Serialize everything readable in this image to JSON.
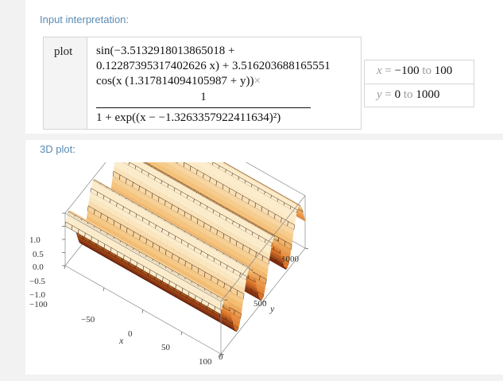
{
  "input_pod": {
    "title": "Input interpretation:",
    "plot_label": "plot",
    "formula": {
      "line1": "sin(−3.5132918013865018 +",
      "line2": "0.12287395317402626 x) + 3.516203688165551",
      "line3": "cos(x (1.317814094105987 + y))",
      "times": "×",
      "numerator": "1",
      "denominator": "1 + exp((x − −1.3263357922411634)²)"
    },
    "ranges": [
      {
        "var": "x",
        "op": "=",
        "from": "−100",
        "to_word": "to",
        "to": "100"
      },
      {
        "var": "y",
        "op": "=",
        "from": "0",
        "to_word": "to",
        "to": "1000"
      }
    ]
  },
  "plot_pod": {
    "title": "3D plot:",
    "z_ticks": [
      "1.0",
      "0.5",
      "0.0",
      "−0.5",
      "−1.0"
    ],
    "x_ticks": [
      "−100",
      "−50",
      "0",
      "50",
      "100"
    ],
    "y_ticks": [
      "0",
      "500",
      "1000"
    ],
    "x_axis_name": "x",
    "y_axis_name": "y"
  },
  "chart_data": {
    "type": "surface",
    "x_range": [
      -100,
      100
    ],
    "y_range": [
      0,
      1000
    ],
    "z_range": [
      -1.0,
      1.0
    ],
    "z_ticks": [
      1.0,
      0.5,
      0.0,
      -0.5,
      -1.0
    ],
    "x_ticks": [
      -100,
      -50,
      0,
      50,
      100
    ],
    "y_ticks": [
      0,
      500,
      1000
    ],
    "xlabel": "x",
    "ylabel": "y",
    "colormap": [
      "#7a2a10",
      "#e07a2a",
      "#f4c27a",
      "#fbeccc"
    ]
  }
}
